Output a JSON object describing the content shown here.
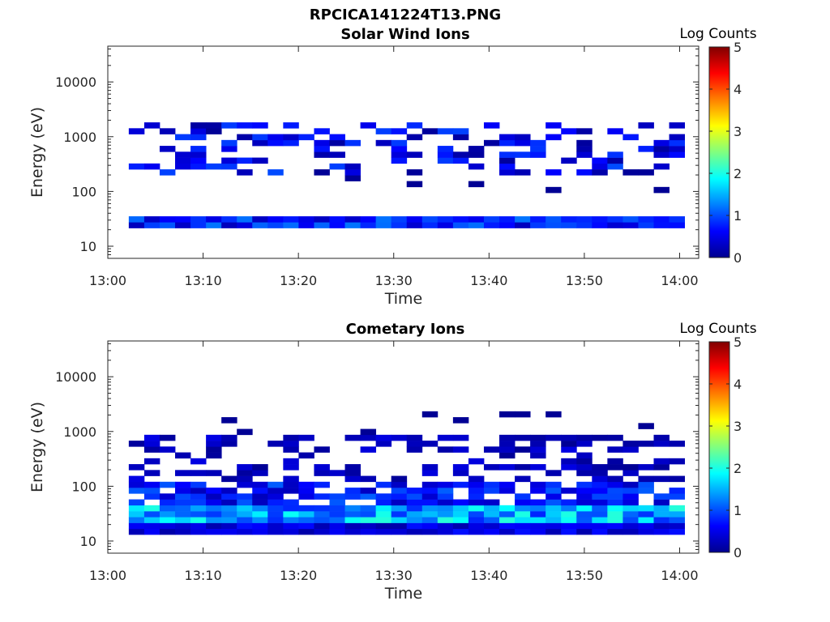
{
  "figure": {
    "title": "RPCICA141224T13.PNG"
  },
  "chart_data": [
    {
      "type": "heatmap",
      "title": "Solar Wind Ions",
      "xlabel": "Time",
      "ylabel": "Energy (eV)",
      "x_range": [
        "13:00",
        "14:02"
      ],
      "x_ticks": [
        "13:00",
        "13:10",
        "13:20",
        "13:30",
        "13:40",
        "13:50",
        "14:00"
      ],
      "y_scale": "log",
      "y_range": [
        6,
        45000
      ],
      "y_ticks": [
        "10",
        "100",
        "1000",
        "10000"
      ],
      "colorbar": {
        "label": "Log Counts",
        "range": [
          0,
          5
        ],
        "ticks": [
          "0",
          "1",
          "2",
          "3",
          "4",
          "5"
        ]
      },
      "band_values": {
        "low_band_energy_eV": [
          18,
          35
        ],
        "high_band_energy_eV": [
          200,
          1600
        ]
      }
    },
    {
      "type": "heatmap",
      "title": "Cometary Ions",
      "xlabel": "Time",
      "ylabel": "Energy (eV)",
      "x_range": [
        "13:00",
        "14:02"
      ],
      "x_ticks": [
        "13:00",
        "13:10",
        "13:20",
        "13:30",
        "13:40",
        "13:50",
        "14:00"
      ],
      "y_scale": "log",
      "y_range": [
        6,
        45000
      ],
      "y_ticks": [
        "10",
        "100",
        "1000",
        "10000"
      ],
      "colorbar": {
        "label": "Log Counts",
        "range": [
          0,
          5
        ],
        "ticks": [
          "0",
          "1",
          "2",
          "3",
          "4",
          "5"
        ]
      },
      "band_values": {
        "main_band_energy_eV": [
          12,
          700
        ],
        "peak_band_energy_eV": [
          20,
          45
        ]
      }
    }
  ]
}
